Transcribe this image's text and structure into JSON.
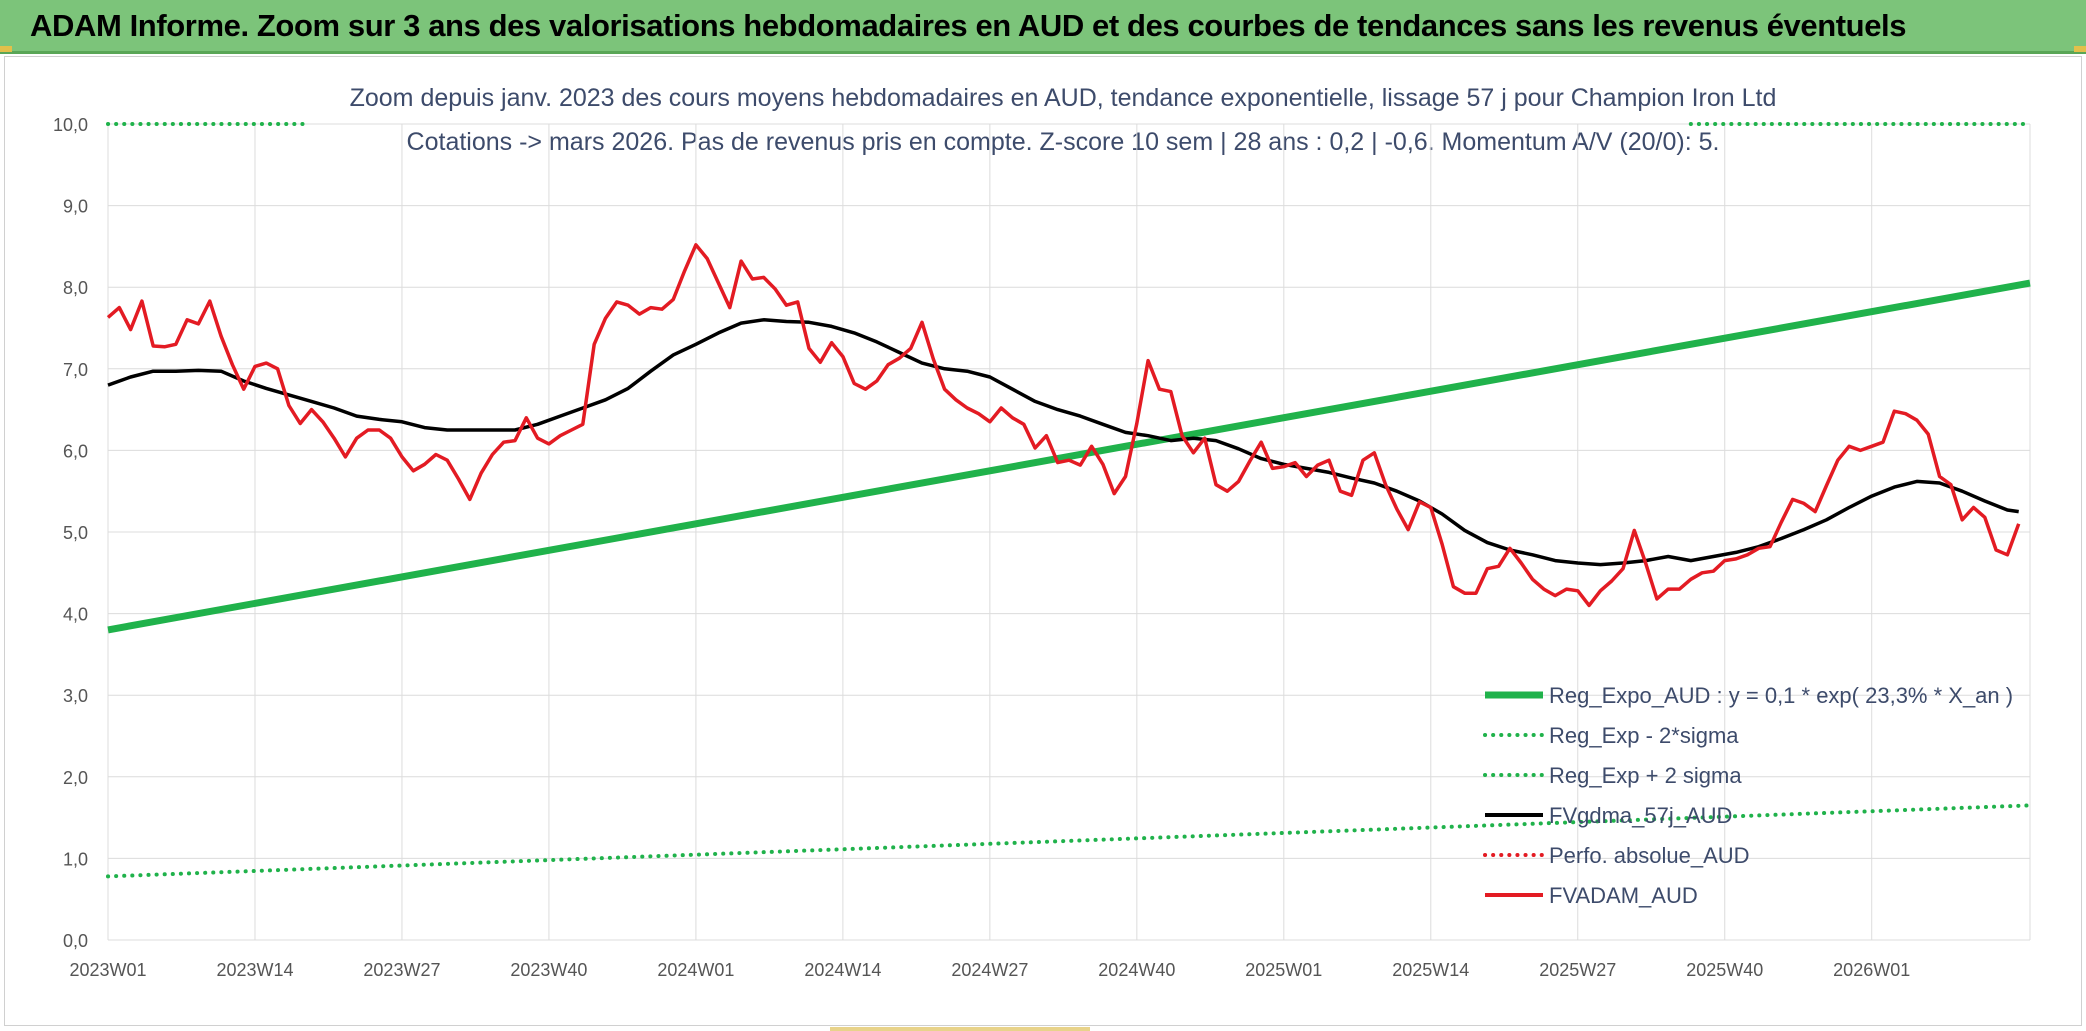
{
  "banner": {
    "title": "ADAM Informe. Zoom sur 3 ans des valorisations hebdomadaires en AUD et des courbes de tendances sans les revenus éventuels"
  },
  "chart_data": {
    "type": "line",
    "title_line1": "Zoom depuis janv. 2023 des cours moyens hebdomadaires en AUD, tendance exponentielle, lissage 57 j pour Champion Iron Ltd",
    "title_line2": "Cotations -> mars 2026. Pas de revenus pris en compte. Z-score 10 sem | 28 ans : 0,2 | -0,6. Momentum A/V (20/0): 5.",
    "xlabel": "",
    "ylabel": "",
    "ylim": [
      0,
      10
    ],
    "yticks": [
      "0,0",
      "1,0",
      "2,0",
      "3,0",
      "4,0",
      "5,0",
      "6,0",
      "7,0",
      "8,0",
      "9,0",
      "10,0"
    ],
    "xticks": [
      "2023W01",
      "2023W14",
      "2023W27",
      "2023W40",
      "2024W01",
      "2024W14",
      "2024W27",
      "2024W40",
      "2025W01",
      "2025W14",
      "2025W27",
      "2025W40",
      "2026W01"
    ],
    "x_range_weeks": [
      0,
      170
    ],
    "grid": true,
    "legend_position": "bottom-right",
    "series": [
      {
        "name": "Reg_Expo_AUD : y = 0,1 * exp( 23,3% *  X_an )",
        "color": "#20b24b",
        "style": "solid",
        "x": [
          0,
          170
        ],
        "values": [
          3.8,
          8.05
        ]
      },
      {
        "name": "Reg_Exp - 2*sigma",
        "color": "#20b24b",
        "style": "dotted",
        "x": [
          0,
          170
        ],
        "values": [
          0.78,
          1.65
        ]
      },
      {
        "name": "Reg_Exp + 2 sigma",
        "color": "#20b24b",
        "style": "dotted",
        "x": [
          0,
          17.5,
          140,
          170
        ],
        "values": [
          10.0,
          10.0,
          10.0,
          10.0
        ],
        "visible_segments": [
          [
            0,
            17.5
          ],
          [
            140,
            170
          ]
        ]
      },
      {
        "name": "FVgdma_57j_AUD",
        "color": "#000000",
        "style": "solid",
        "x": [
          0,
          2,
          4,
          6,
          8,
          10,
          12,
          14,
          16,
          18,
          20,
          22,
          24,
          26,
          28,
          30,
          32,
          34,
          36,
          38,
          40,
          42,
          44,
          46,
          48,
          50,
          52,
          54,
          56,
          58,
          60,
          62,
          64,
          66,
          68,
          70,
          72,
          74,
          76,
          78,
          80,
          82,
          84,
          86,
          88,
          90,
          92,
          94,
          96,
          98,
          100,
          102,
          104,
          106,
          108,
          110,
          112,
          114,
          116,
          118,
          120,
          122,
          124,
          126,
          128,
          130,
          132,
          134,
          136,
          138,
          140,
          142,
          144,
          146,
          148,
          150,
          152,
          154,
          156,
          158,
          160,
          162,
          164,
          166,
          168,
          169
        ],
        "values": [
          6.8,
          6.9,
          6.97,
          6.97,
          6.98,
          6.97,
          6.85,
          6.76,
          6.68,
          6.6,
          6.52,
          6.42,
          6.38,
          6.35,
          6.28,
          6.25,
          6.25,
          6.25,
          6.25,
          6.32,
          6.42,
          6.52,
          6.62,
          6.76,
          6.97,
          7.17,
          7.3,
          7.44,
          7.56,
          7.6,
          7.58,
          7.57,
          7.52,
          7.44,
          7.33,
          7.2,
          7.07,
          7.0,
          6.97,
          6.9,
          6.75,
          6.6,
          6.5,
          6.42,
          6.32,
          6.22,
          6.18,
          6.12,
          6.15,
          6.12,
          6.02,
          5.9,
          5.83,
          5.78,
          5.73,
          5.66,
          5.6,
          5.5,
          5.38,
          5.22,
          5.02,
          4.87,
          4.78,
          4.72,
          4.65,
          4.62,
          4.6,
          4.62,
          4.65,
          4.7,
          4.65,
          4.7,
          4.75,
          4.82,
          4.92,
          5.03,
          5.15,
          5.3,
          5.44,
          5.55,
          5.62,
          5.6,
          5.5,
          5.38,
          5.27,
          5.25
        ]
      },
      {
        "name": "Perfo. absolue_AUD",
        "color": "#e31b23",
        "style": "dotted",
        "x": [],
        "values": []
      },
      {
        "name": "FVADAM_AUD",
        "color": "#e31b23",
        "style": "solid",
        "x": [
          0,
          1,
          2,
          3,
          4,
          5,
          6,
          7,
          8,
          9,
          10,
          11,
          12,
          13,
          14,
          15,
          16,
          17,
          18,
          19,
          20,
          21,
          22,
          23,
          24,
          25,
          26,
          27,
          28,
          29,
          30,
          31,
          32,
          33,
          34,
          35,
          36,
          37,
          38,
          39,
          40,
          41,
          42,
          43,
          44,
          45,
          46,
          47,
          48,
          49,
          50,
          51,
          52,
          53,
          54,
          55,
          56,
          57,
          58,
          59,
          60,
          61,
          62,
          63,
          64,
          65,
          66,
          67,
          68,
          69,
          70,
          71,
          72,
          73,
          74,
          75,
          76,
          77,
          78,
          79,
          80,
          81,
          82,
          83,
          84,
          85,
          86,
          87,
          88,
          89,
          90,
          91,
          92,
          93,
          94,
          95,
          96,
          97,
          98,
          99,
          100,
          101,
          102,
          103,
          104,
          105,
          106,
          107,
          108,
          109,
          110,
          111,
          112,
          113,
          114,
          115,
          116,
          117,
          118,
          119,
          120,
          121,
          122,
          123,
          124,
          125,
          126,
          127,
          128,
          129,
          130,
          131,
          132,
          133,
          134,
          135,
          136,
          137,
          138,
          139,
          140,
          141,
          142,
          143,
          144,
          145,
          146,
          147,
          148,
          149,
          150,
          151,
          152,
          153,
          154,
          155,
          156,
          157,
          158,
          159,
          160,
          161,
          162,
          163,
          164,
          165,
          166,
          167,
          168,
          169
        ],
        "values": [
          7.63,
          7.75,
          7.48,
          7.83,
          7.28,
          7.27,
          7.3,
          7.6,
          7.55,
          7.83,
          7.4,
          7.05,
          6.75,
          7.03,
          7.07,
          7.0,
          6.55,
          6.33,
          6.5,
          6.35,
          6.15,
          5.92,
          6.15,
          6.25,
          6.25,
          6.15,
          5.92,
          5.75,
          5.83,
          5.95,
          5.88,
          5.65,
          5.4,
          5.72,
          5.95,
          6.1,
          6.12,
          6.4,
          6.15,
          6.08,
          6.18,
          6.25,
          6.32,
          7.3,
          7.62,
          7.82,
          7.78,
          7.67,
          7.75,
          7.73,
          7.85,
          8.2,
          8.52,
          8.35,
          8.05,
          7.75,
          8.32,
          8.1,
          8.12,
          7.98,
          7.78,
          7.82,
          7.25,
          7.08,
          7.32,
          7.15,
          6.82,
          6.75,
          6.85,
          7.05,
          7.13,
          7.25,
          7.57,
          7.12,
          6.75,
          6.62,
          6.52,
          6.45,
          6.35,
          6.52,
          6.4,
          6.32,
          6.03,
          6.18,
          5.85,
          5.88,
          5.82,
          6.05,
          5.83,
          5.47,
          5.68,
          6.33,
          7.1,
          6.75,
          6.72,
          6.18,
          5.97,
          6.15,
          5.58,
          5.5,
          5.62,
          5.87,
          6.1,
          5.78,
          5.8,
          5.85,
          5.68,
          5.82,
          5.88,
          5.5,
          5.45,
          5.88,
          5.97,
          5.58,
          5.28,
          5.03,
          5.37,
          5.3,
          4.85,
          4.33,
          4.25,
          4.25,
          4.55,
          4.58,
          4.8,
          4.62,
          4.42,
          4.3,
          4.22,
          4.3,
          4.28,
          4.1,
          4.28,
          4.4,
          4.55,
          5.02,
          4.62,
          4.18,
          4.3,
          4.3,
          4.42,
          4.5,
          4.52,
          4.65,
          4.67,
          4.72,
          4.8,
          4.82,
          5.12,
          5.4,
          5.35,
          5.25,
          5.57,
          5.88,
          6.05,
          6.0,
          6.05,
          6.1,
          6.48,
          6.45,
          6.37,
          6.2,
          5.68,
          5.58,
          5.15,
          5.3,
          5.18,
          4.78,
          4.72,
          5.1
        ]
      }
    ]
  }
}
